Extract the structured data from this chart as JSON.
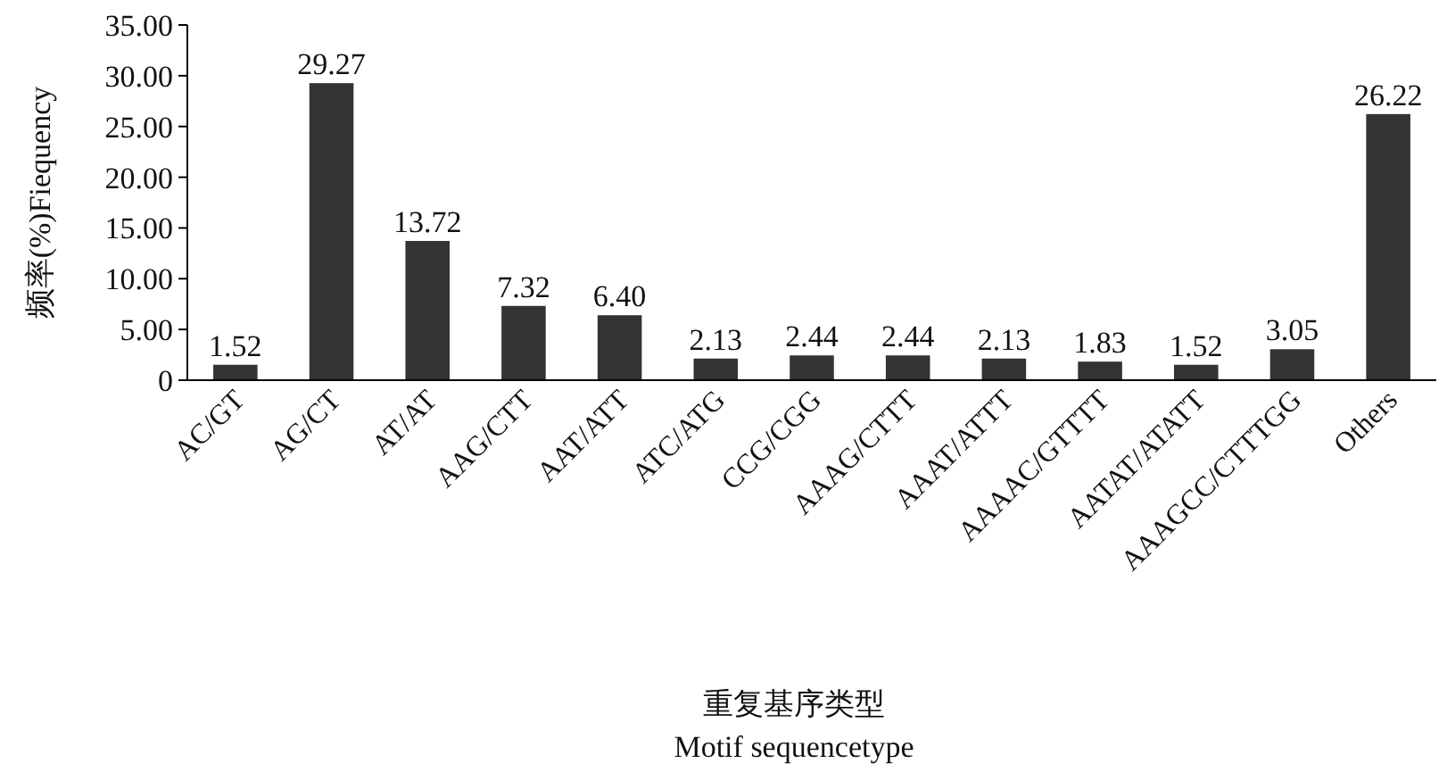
{
  "chart_data": {
    "type": "bar",
    "categories": [
      "AC/GT",
      "AG/CT",
      "AT/AT",
      "AAG/CTT",
      "AAT/ATT",
      "ATC/ATG",
      "CCG/CGG",
      "AAAG/CTTT",
      "AAAT/ATTT",
      "AAAAC/GTTTT",
      "AATAT/ATATT",
      "AAAGCC/CTTTGG",
      "Others"
    ],
    "values": [
      1.52,
      29.27,
      13.72,
      7.32,
      6.4,
      2.13,
      2.44,
      2.44,
      2.13,
      1.83,
      1.52,
      3.05,
      26.22
    ],
    "value_labels": [
      "1.52",
      "29.27",
      "13.72",
      "7.32",
      "6.40",
      "2.13",
      "2.44",
      "2.44",
      "2.13",
      "1.83",
      "1.52",
      "3.05",
      "26.22"
    ],
    "color": "#333333",
    "ylim": [
      0,
      35
    ],
    "yticks": [
      0,
      {
        "value": 5,
        "label": "5.00"
      },
      {
        "value": 10,
        "label": "10.00"
      },
      {
        "value": 15,
        "label": "15.00"
      },
      {
        "value": 20,
        "label": "20.00"
      },
      {
        "value": 25,
        "label": "25.00"
      },
      {
        "value": 30,
        "label": "30.00"
      },
      {
        "value": 35,
        "label": "35.00"
      }
    ],
    "ylabel": "频率(%)Fiequency",
    "xlabel": "重复基序类型\nMotif sequencetype",
    "grid": false
  }
}
